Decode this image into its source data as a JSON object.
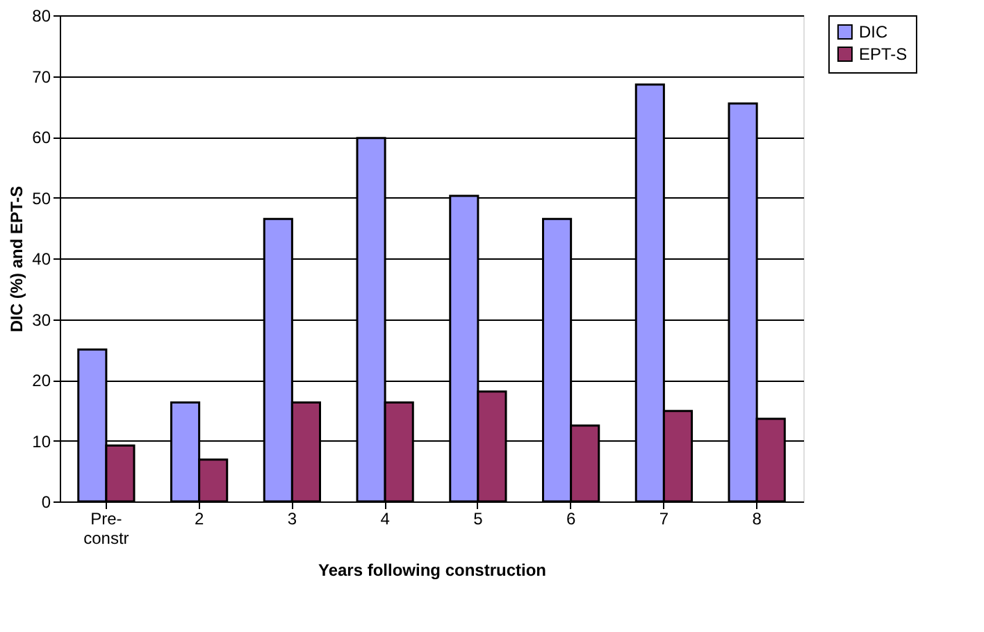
{
  "chart_data": {
    "type": "bar",
    "xlabel": "Years following construction",
    "ylabel": "DIC (%) and EPT-S",
    "categories": [
      "Pre-constr",
      "2",
      "3",
      "4",
      "5",
      "6",
      "7",
      "8"
    ],
    "series": [
      {
        "name": "DIC",
        "color": "#9999ff",
        "values": [
          25,
          16.3,
          46.5,
          59.8,
          50.3,
          46.5,
          68.6,
          65.5
        ]
      },
      {
        "name": "EPT-S",
        "color": "#993366",
        "values": [
          9.2,
          6.9,
          16.3,
          16.3,
          18.1,
          12.5,
          14.9,
          13.6
        ]
      }
    ],
    "ylim": [
      0,
      80
    ],
    "yticks": [
      0,
      10,
      20,
      30,
      40,
      50,
      60,
      70,
      80
    ],
    "grid": "y",
    "legend": "right"
  }
}
